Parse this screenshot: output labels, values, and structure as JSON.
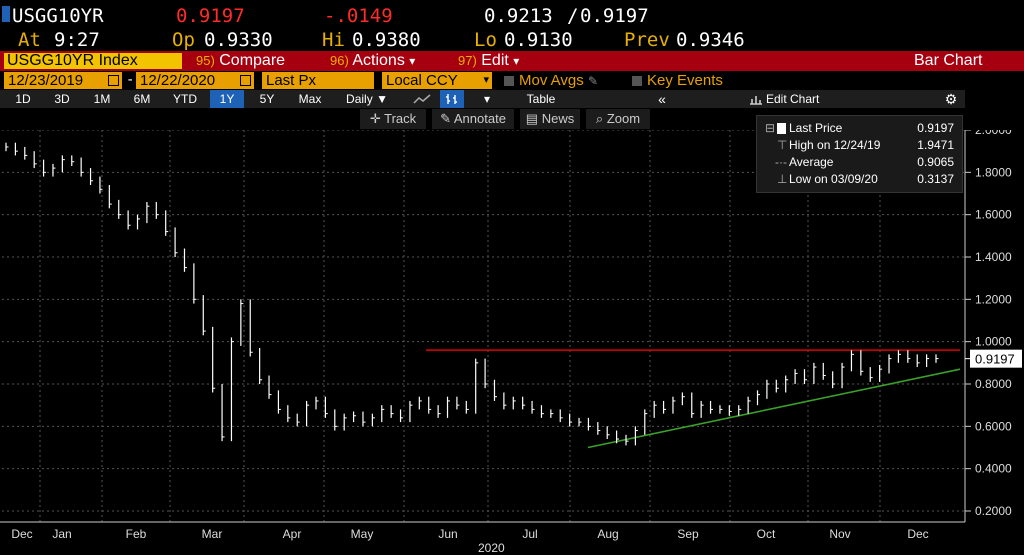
{
  "header": {
    "ticker": "USGG10YR",
    "last": "0.9197",
    "change": "-.0149",
    "bid_ask": "0.9213",
    "bid_ask_sep": "/",
    "bid_ask2": "0.9197",
    "at_label": "At",
    "time": "9:27",
    "op_label": "Op",
    "open": "0.9330",
    "hi_label": "Hi",
    "high": "0.9380",
    "lo_label": "Lo",
    "low": "0.9130",
    "prev_label": "Prev",
    "prev": "0.9346"
  },
  "menubar": {
    "security": "USGG10YR Index",
    "compare_num": "95)",
    "compare": "Compare",
    "actions_num": "96)",
    "actions": "Actions",
    "edit_num": "97)",
    "edit": "Edit",
    "chart_type": "Bar Chart",
    "dropdown_glyph": "▾"
  },
  "params": {
    "start_date": "12/23/2019",
    "end_date": "12/22/2020",
    "date_sep": "-",
    "field": "Last Px",
    "currency": "Local CCY",
    "mov_avgs": "Mov Avgs",
    "key_events": "Key Events"
  },
  "periods": [
    "1D",
    "3D",
    "1M",
    "6M",
    "YTD",
    "1Y",
    "5Y",
    "Max"
  ],
  "selected_period": "1Y",
  "frequency": "Daily",
  "table_label": "Table",
  "edit_chart": "Edit Chart",
  "tools": {
    "track": "Track",
    "annotate": "Annotate",
    "news": "News",
    "zoom": "Zoom"
  },
  "legend": {
    "last_price_label": "Last Price",
    "last_price": "0.9197",
    "high_label": "High on 12/24/19",
    "high": "1.9471",
    "average_label": "Average",
    "average": "0.9065",
    "low_label": "Low on 03/09/20",
    "low": "0.3137"
  },
  "colors": {
    "accent_yellow": "#e8b000",
    "menu_red": "#a60010",
    "resistance_line": "#e00000",
    "support_line": "#3aa02a"
  },
  "chart_data": {
    "type": "bar",
    "title": "",
    "xlabel": "2020",
    "ylabel": "",
    "ylim": [
      0.2,
      2.0
    ],
    "y_ticks": [
      "2.0000",
      "1.8000",
      "1.6000",
      "1.4000",
      "1.2000",
      "1.0000",
      "0.8000",
      "0.6000",
      "0.4000",
      "0.2000"
    ],
    "x_ticks": [
      "Dec",
      "Jan",
      "Feb",
      "Mar",
      "Apr",
      "May",
      "Jun",
      "Jul",
      "Aug",
      "Sep",
      "Oct",
      "Nov",
      "Dec"
    ],
    "last_value_label": "0.9197",
    "series": [
      {
        "name": "Last Price",
        "values": [
          1.92,
          1.9,
          1.88,
          1.84,
          1.8,
          1.82,
          1.86,
          1.85,
          1.8,
          1.76,
          1.72,
          1.65,
          1.6,
          1.55,
          1.58,
          1.64,
          1.6,
          1.52,
          1.42,
          1.35,
          1.2,
          1.05,
          0.78,
          0.55,
          1.0,
          1.18,
          0.95,
          0.82,
          0.75,
          0.68,
          0.64,
          0.62,
          0.7,
          0.72,
          0.66,
          0.6,
          0.64,
          0.65,
          0.62,
          0.64,
          0.68,
          0.66,
          0.64,
          0.7,
          0.72,
          0.68,
          0.66,
          0.72,
          0.7,
          0.68,
          0.9,
          0.8,
          0.74,
          0.7,
          0.72,
          0.7,
          0.68,
          0.66,
          0.66,
          0.64,
          0.62,
          0.62,
          0.6,
          0.58,
          0.56,
          0.54,
          0.53,
          0.58,
          0.66,
          0.7,
          0.68,
          0.72,
          0.74,
          0.66,
          0.7,
          0.68,
          0.68,
          0.67,
          0.68,
          0.72,
          0.75,
          0.8,
          0.78,
          0.82,
          0.85,
          0.82,
          0.88,
          0.84,
          0.8,
          0.88,
          0.94,
          0.86,
          0.83,
          0.87,
          0.92,
          0.94,
          0.92,
          0.9,
          0.92,
          0.92
        ]
      }
    ],
    "lines": [
      {
        "name": "resistance",
        "from": [
          "Jun",
          0.96
        ],
        "to": [
          "Dec",
          0.96
        ],
        "color": "#e00000"
      },
      {
        "name": "support",
        "from": [
          "Aug",
          0.5
        ],
        "to": [
          "Dec",
          0.87
        ],
        "color": "#3aa02a"
      }
    ]
  }
}
